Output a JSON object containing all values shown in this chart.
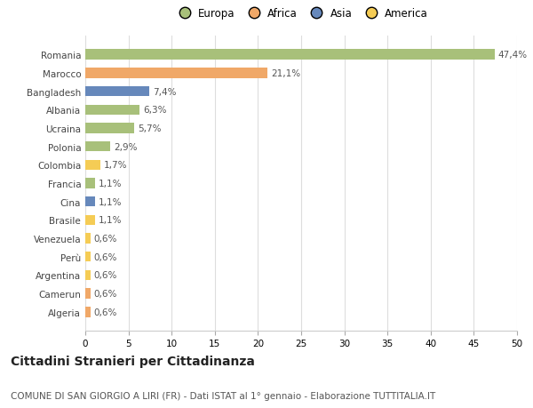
{
  "categories": [
    "Romania",
    "Marocco",
    "Bangladesh",
    "Albania",
    "Ucraina",
    "Polonia",
    "Colombia",
    "Francia",
    "Cina",
    "Brasile",
    "Venezuela",
    "Perù",
    "Argentina",
    "Camerun",
    "Algeria"
  ],
  "values": [
    47.4,
    21.1,
    7.4,
    6.3,
    5.7,
    2.9,
    1.7,
    1.1,
    1.1,
    1.1,
    0.6,
    0.6,
    0.6,
    0.6,
    0.6
  ],
  "labels": [
    "47,4%",
    "21,1%",
    "7,4%",
    "6,3%",
    "5,7%",
    "2,9%",
    "1,7%",
    "1,1%",
    "1,1%",
    "1,1%",
    "0,6%",
    "0,6%",
    "0,6%",
    "0,6%",
    "0,6%"
  ],
  "colors": [
    "#a8c07a",
    "#f0a868",
    "#6688bb",
    "#a8c07a",
    "#a8c07a",
    "#a8c07a",
    "#f5cc55",
    "#a8c07a",
    "#6688bb",
    "#f5cc55",
    "#f5cc55",
    "#f5cc55",
    "#f5cc55",
    "#f0a868",
    "#f0a868"
  ],
  "legend_labels": [
    "Europa",
    "Africa",
    "Asia",
    "America"
  ],
  "legend_colors": [
    "#a8c07a",
    "#f0a868",
    "#6688bb",
    "#f5cc55"
  ],
  "xlim": [
    0,
    50
  ],
  "xticks": [
    0,
    5,
    10,
    15,
    20,
    25,
    30,
    35,
    40,
    45,
    50
  ],
  "title": "Cittadini Stranieri per Cittadinanza",
  "subtitle": "COMUNE DI SAN GIORGIO A LIRI (FR) - Dati ISTAT al 1° gennaio - Elaborazione TUTTITALIA.IT",
  "background_color": "#ffffff",
  "grid_color": "#dddddd",
  "label_fontsize": 7.5,
  "tick_fontsize": 7.5,
  "title_fontsize": 10,
  "subtitle_fontsize": 7.5
}
